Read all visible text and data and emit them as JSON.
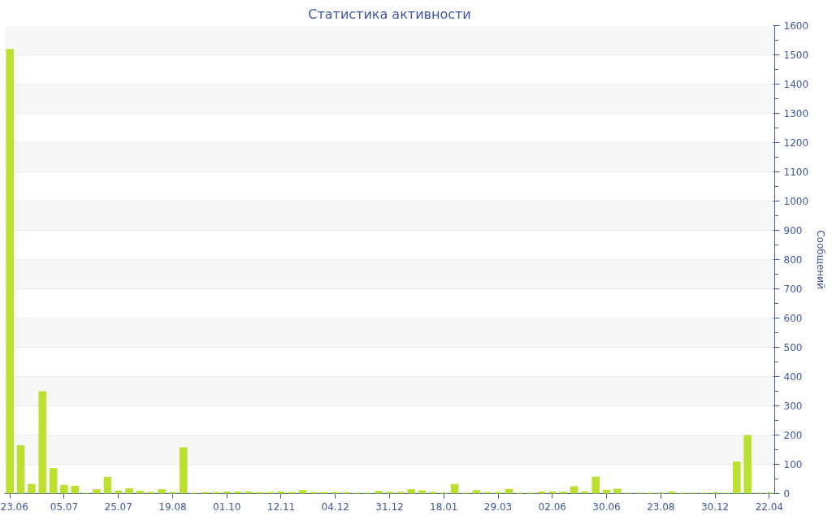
{
  "chart_data": {
    "type": "bar",
    "title": "Статистика активности",
    "ylabel": "Сообщений",
    "categories": [
      "23.06",
      null,
      null,
      null,
      null,
      "05.07",
      null,
      null,
      null,
      null,
      "25.07",
      null,
      null,
      null,
      null,
      "19.08",
      null,
      null,
      null,
      null,
      "01.10",
      null,
      null,
      null,
      null,
      "12.11",
      null,
      null,
      null,
      null,
      "04.12",
      null,
      null,
      null,
      null,
      "31.12",
      null,
      null,
      null,
      null,
      "18.01",
      null,
      null,
      null,
      null,
      "29.03",
      null,
      null,
      null,
      null,
      "02.06",
      null,
      null,
      null,
      null,
      "30.06",
      null,
      null,
      null,
      null,
      "23.08",
      null,
      null,
      null,
      null,
      "30.12",
      null,
      null,
      null,
      null,
      "22.04"
    ],
    "values": [
      1520,
      165,
      33,
      350,
      87,
      30,
      27,
      3,
      15,
      57,
      10,
      18,
      10,
      5,
      15,
      5,
      158,
      3,
      5,
      5,
      7,
      7,
      7,
      5,
      5,
      7,
      5,
      12,
      5,
      5,
      5,
      5,
      3,
      3,
      9,
      6,
      6,
      15,
      11,
      6,
      3,
      33,
      3,
      12,
      5,
      5,
      16,
      3,
      3,
      7,
      7,
      7,
      25,
      7,
      58,
      13,
      17,
      3,
      3,
      3,
      3,
      7,
      3,
      3,
      3,
      4,
      3,
      110,
      200,
      3,
      3
    ],
    "color": "#bbe02f",
    "ylim": [
      0,
      1600
    ],
    "yticks": [
      0,
      100,
      200,
      300,
      400,
      500,
      600,
      700,
      800,
      900,
      1000,
      1100,
      1200,
      1300,
      1400,
      1500,
      1600
    ],
    "grid": "y"
  }
}
